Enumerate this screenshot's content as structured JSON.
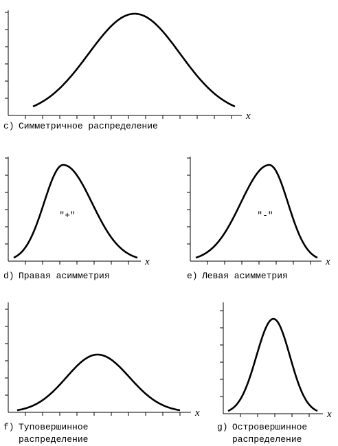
{
  "panels": [
    {
      "label": "c)",
      "caption": [
        "Симметричное распределение"
      ],
      "axis_label": "x"
    },
    {
      "label": "d)",
      "caption": [
        "Правая асимметрия"
      ],
      "axis_label": "x",
      "annotation": "\"+\""
    },
    {
      "label": "e)",
      "caption": [
        "Левая асимметрия"
      ],
      "axis_label": "x",
      "annotation": "\"-\""
    },
    {
      "label": "f)",
      "caption": [
        "Туповершинное",
        "распределение"
      ],
      "axis_label": "x"
    },
    {
      "label": "g)",
      "caption": [
        "Островершинное",
        "распределение"
      ],
      "axis_label": "x"
    }
  ]
}
